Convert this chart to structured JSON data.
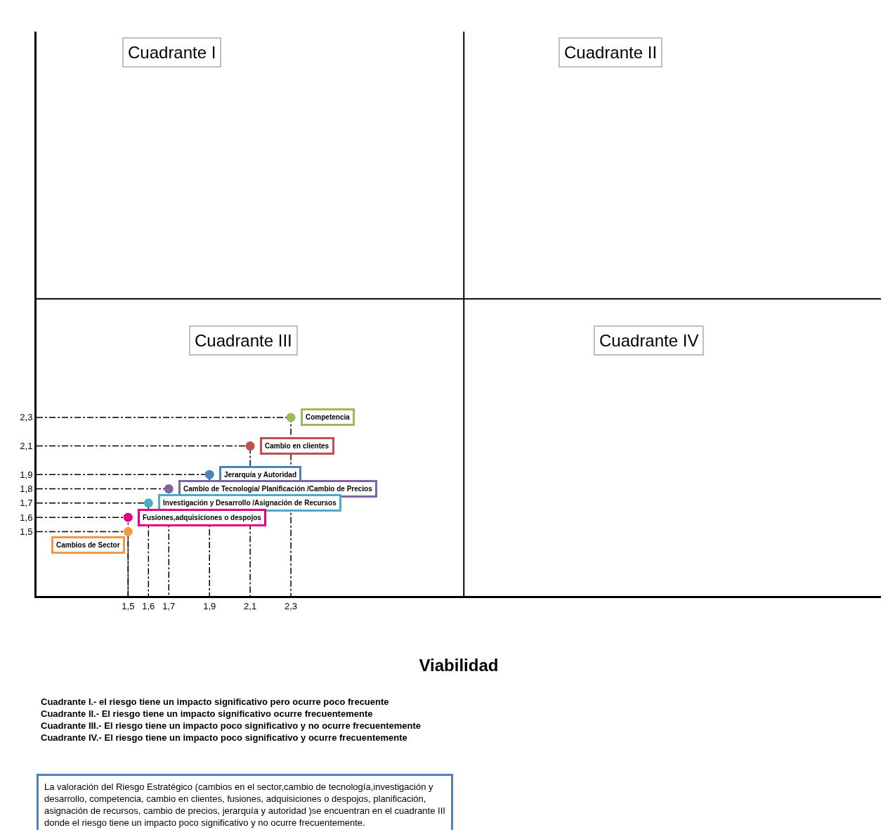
{
  "chart_data": {
    "type": "scatter",
    "xlabel": "Viabilidad",
    "xlim": [
      1.05,
      5.2
    ],
    "ylim": [
      1.05,
      5.0
    ],
    "xticks": [
      {
        "value": 1.5,
        "label": "1,5"
      },
      {
        "value": 1.6,
        "label": "1,6"
      },
      {
        "value": 1.7,
        "label": "1,7"
      },
      {
        "value": 1.9,
        "label": "1,9"
      },
      {
        "value": 2.1,
        "label": "2,1"
      },
      {
        "value": 2.3,
        "label": "2,3"
      }
    ],
    "yticks": [
      {
        "value": 1.5,
        "label": "1,5"
      },
      {
        "value": 1.6,
        "label": "1,6"
      },
      {
        "value": 1.7,
        "label": "1,7"
      },
      {
        "value": 1.8,
        "label": "1,8"
      },
      {
        "value": 1.9,
        "label": "1,9"
      },
      {
        "value": 2.1,
        "label": "2,1"
      },
      {
        "value": 2.3,
        "label": "2,3"
      }
    ],
    "marker": "circle",
    "legend": false,
    "series": [
      {
        "name": "Competencia",
        "color": "#9bbb59",
        "x": [
          2.3
        ],
        "values": [
          2.3
        ]
      },
      {
        "name": "Cambio en clientes",
        "color": "#c0504d",
        "x": [
          2.1
        ],
        "values": [
          2.1
        ]
      },
      {
        "name": "Jerarquía y Autoridad",
        "color": "#4f81bd",
        "x": [
          1.9
        ],
        "values": [
          1.9
        ]
      },
      {
        "name": "Cambio de Tecnología/ Planificación /Cambio de Precios",
        "color": "#8064a2",
        "x": [
          1.7
        ],
        "values": [
          1.8
        ]
      },
      {
        "name": "Investigación y Desarrollo /Asignación de Recursos",
        "color": "#4bacc6",
        "x": [
          1.6
        ],
        "values": [
          1.7
        ]
      },
      {
        "name": "Fusiones,adquisiciones o despojos",
        "color": "#e6007e",
        "x": [
          1.5
        ],
        "values": [
          1.6
        ]
      },
      {
        "name": "Cambios de Sector",
        "color": "#f79646",
        "x": [
          1.5
        ],
        "values": [
          1.5
        ]
      },
      {
        "type": "line",
        "color": "#000000",
        "marker": "none",
        "line_style": "dashed",
        "x": [
          1.05,
          2.3,
          2.3
        ],
        "values": [
          2.3,
          2.3,
          1.05
        ]
      },
      {
        "type": "line",
        "color": "#000000",
        "marker": "none",
        "line_style": "dashed",
        "x": [
          1.05,
          2.1,
          2.1
        ],
        "values": [
          2.1,
          2.1,
          1.05
        ]
      },
      {
        "type": "line",
        "color": "#000000",
        "marker": "none",
        "line_style": "dashed",
        "x": [
          1.05,
          1.9,
          1.9
        ],
        "values": [
          1.9,
          1.9,
          1.05
        ]
      },
      {
        "type": "line",
        "color": "#000000",
        "marker": "none",
        "line_style": "dashed",
        "x": [
          1.05,
          1.7,
          1.7
        ],
        "values": [
          1.8,
          1.8,
          1.05
        ]
      },
      {
        "type": "line",
        "color": "#000000",
        "marker": "none",
        "line_style": "dashed",
        "x": [
          1.05,
          1.6,
          1.6
        ],
        "values": [
          1.7,
          1.7,
          1.05
        ]
      },
      {
        "type": "line",
        "color": "#000000",
        "marker": "none",
        "line_style": "dashed",
        "x": [
          1.05,
          1.5,
          1.5
        ],
        "values": [
          1.6,
          1.6,
          1.05
        ]
      },
      {
        "type": "line",
        "color": "#000000",
        "marker": "none",
        "line_style": "dashed",
        "x": [
          1.05,
          1.5,
          1.5
        ],
        "values": [
          1.5,
          1.5,
          1.05
        ]
      }
    ],
    "ref_lines": [
      {
        "axis": "x",
        "value": 3.15,
        "color": "#000000"
      },
      {
        "axis": "y",
        "value": 3.13,
        "color": "#000000"
      }
    ],
    "annotations": [
      "Cuadrante I",
      "Cuadrante II",
      "Cuadrante III",
      "Cuadrante IV",
      "Cuadrante I.- el riesgo tiene un impacto significativo pero ocurre poco frecuente",
      "Cuadrante II.- El riesgo tiene un impacto significativo ocurre frecuentemente",
      "Cuadrante III.- El riesgo tiene un impacto poco significativo y no ocurre frecuentemente",
      "Cuadrante IV.- El riesgo tiene un impacto poco significativo y ocurre frecuentemente",
      "La valoración del Riesgo Estratégico (cambios en el sector,cambio de tecnología,investigación y\ndesarrollo, competencia, cambio en clientes, fusiones, adquisiciones o despojos, planificación,\nasignación de recursos, cambio de precios, jerarquía y autoridad )se encuentran en el cuadrante III\ndonde el riesgo tiene un impacto poco significativo y no ocurre frecuentemente."
    ]
  }
}
